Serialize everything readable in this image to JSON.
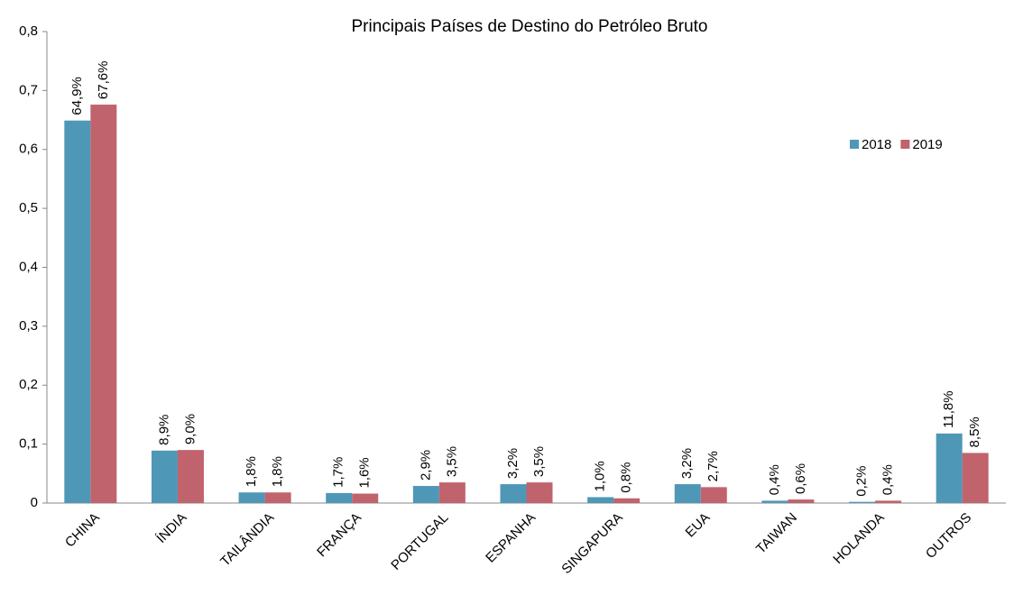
{
  "chart_data": {
    "type": "bar",
    "title": "Principais Países de Destino do Petróleo Bruto",
    "categories": [
      "CHINA",
      "ÍNDIA",
      "TAILÂNDIA",
      "FRANÇA",
      "PORTUGAL",
      "ESPANHA",
      "SINGAPURA",
      "EUA",
      "TAIWAN",
      "HOLANDA",
      "OUTROS"
    ],
    "series": [
      {
        "name": "2018",
        "color": "#4f97b6",
        "values": [
          0.649,
          0.089,
          0.018,
          0.017,
          0.029,
          0.032,
          0.01,
          0.032,
          0.004,
          0.002,
          0.118
        ],
        "value_labels": [
          "64,9%",
          "8,9%",
          "1,8%",
          "1,7%",
          "2,9%",
          "3,2%",
          "1,0%",
          "3,2%",
          "0,4%",
          "0,2%",
          "11,8%"
        ]
      },
      {
        "name": "2019",
        "color": "#c0636d",
        "values": [
          0.676,
          0.09,
          0.018,
          0.016,
          0.035,
          0.035,
          0.008,
          0.027,
          0.006,
          0.004,
          0.085
        ],
        "value_labels": [
          "67,6%",
          "9,0%",
          "1,8%",
          "1,6%",
          "3,5%",
          "3,5%",
          "0,8%",
          "2,7%",
          "0,6%",
          "0,4%",
          "8,5%"
        ]
      }
    ],
    "ylim": [
      0,
      0.8
    ],
    "yticks": [
      0,
      {
        "value": 0.1,
        "label": "0,1"
      },
      {
        "value": 0.2,
        "label": "0,2"
      },
      {
        "value": 0.3,
        "label": "0,3"
      },
      {
        "value": 0.4,
        "label": "0,4"
      },
      {
        "value": 0.5,
        "label": "0,5"
      },
      {
        "value": 0.6,
        "label": "0,6"
      },
      {
        "value": 0.7,
        "label": "0,7"
      },
      {
        "value": 0.8,
        "label": "0,8"
      }
    ],
    "grid": false,
    "legend": "upper right"
  }
}
